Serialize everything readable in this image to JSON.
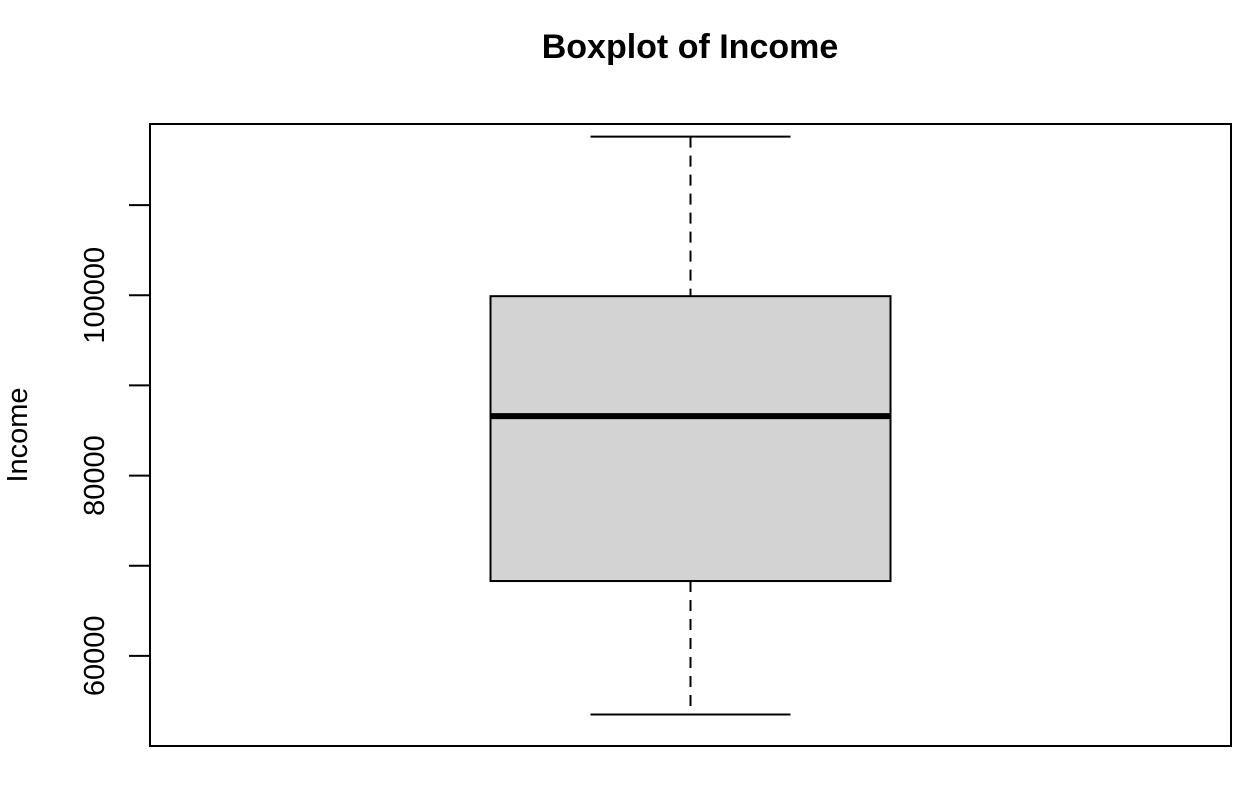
{
  "chart_data": {
    "type": "boxplot",
    "title": "Boxplot of Income",
    "xlabel": "",
    "ylabel": "Income",
    "ylim": [
      50000,
      119000
    ],
    "yticks": [
      60000,
      70000,
      80000,
      90000,
      100000,
      110000
    ],
    "ytick_labels": [
      "60000",
      "",
      "80000",
      "",
      "100000",
      ""
    ],
    "grid": false,
    "series": [
      {
        "whisker_low": 53500,
        "q1": 68300,
        "median": 86600,
        "q3": 99900,
        "whisker_high": 117600
      }
    ],
    "colors": {
      "box_fill": "#d3d3d3",
      "stroke": "#000000"
    }
  }
}
